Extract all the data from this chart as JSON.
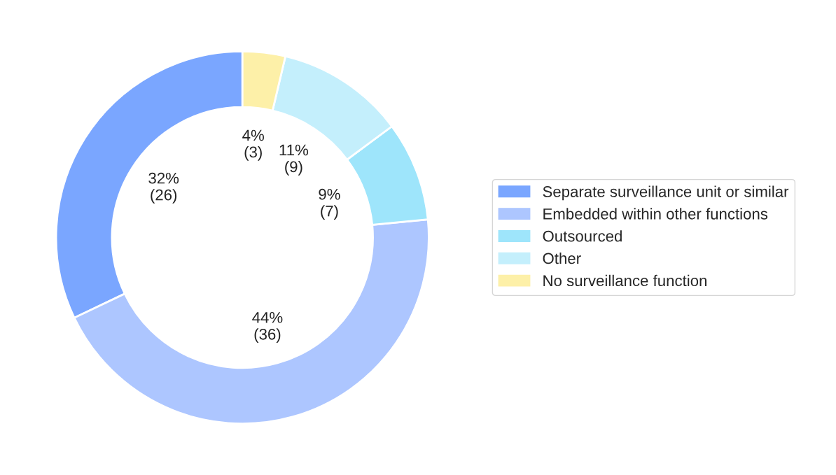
{
  "chart_data": {
    "type": "donut",
    "categories": [
      "Separate surveillance unit or similar",
      "Embedded within other functions",
      "Outsourced",
      "Other",
      "No surveillance function"
    ],
    "values": [
      26,
      36,
      7,
      9,
      3
    ],
    "colors": [
      "#7aa6ff",
      "#adc6ff",
      "#9ee5fb",
      "#c4effc",
      "#fdf0a8"
    ],
    "value_labels": [
      "32%\n(26)",
      "44%\n(36)",
      "9%\n(7)",
      "11%\n(9)",
      "4%\n(3)"
    ],
    "legend": "right"
  }
}
